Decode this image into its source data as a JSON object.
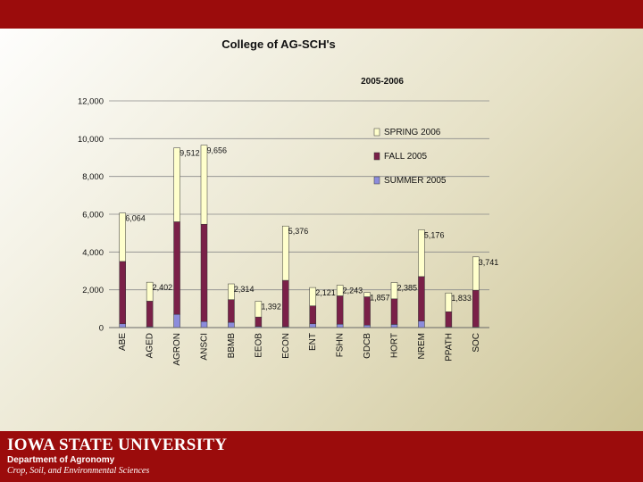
{
  "footer": {
    "university": "IOWA STATE UNIVERSITY",
    "department": "Department of Agronomy",
    "subtitle": "Crop, Soil, and Environmental Sciences"
  },
  "colors": {
    "top_bar": "#9b0c0c",
    "spring": "#ffffcc",
    "fall": "#7a2048",
    "summer": "#8c8cdc"
  },
  "chart_data": {
    "type": "bar",
    "stacked": true,
    "title": "College of AG-SCH's",
    "subtitle": "2005-2006",
    "xlabel": "",
    "ylabel": "",
    "ylim": [
      0,
      12000
    ],
    "yticks": [
      "0",
      "2,000",
      "4,000",
      "6,000",
      "8,000",
      "10,000",
      "12,000"
    ],
    "grid": true,
    "legend_position": "right",
    "categories": [
      "ABE",
      "AGED",
      "AGRON",
      "ANSCI",
      "BBMB",
      "EEOB",
      "ECON",
      "ENT",
      "FSHN",
      "GDCB",
      "HORT",
      "NREM",
      "PPATH",
      "SOC"
    ],
    "series": [
      {
        "name": "SUMMER 2005",
        "values": [
          200,
          50,
          700,
          320,
          280,
          60,
          50,
          200,
          180,
          130,
          170,
          350,
          40,
          30
        ]
      },
      {
        "name": "FALL 2005",
        "values": [
          3300,
          1350,
          4900,
          5150,
          1200,
          500,
          2450,
          950,
          1500,
          1500,
          1350,
          2350,
          800,
          1950
        ]
      },
      {
        "name": "SPRING 2006",
        "values": [
          2564,
          1002,
          3912,
          4186,
          834,
          832,
          2876,
          971,
          563,
          227,
          865,
          2476,
          993,
          1761
        ]
      }
    ],
    "totals": [
      6064,
      2402,
      9512,
      9656,
      2314,
      1392,
      5376,
      2121,
      2243,
      1857,
      2385,
      5176,
      1833,
      3741
    ],
    "total_labels": [
      "6,064",
      "2,402",
      "9,512",
      "9,656",
      "2,314",
      "1,392",
      "5,376",
      "2,121",
      "2,243",
      "1,857",
      "2,385",
      "5,176",
      "1,833",
      "3,741"
    ]
  }
}
